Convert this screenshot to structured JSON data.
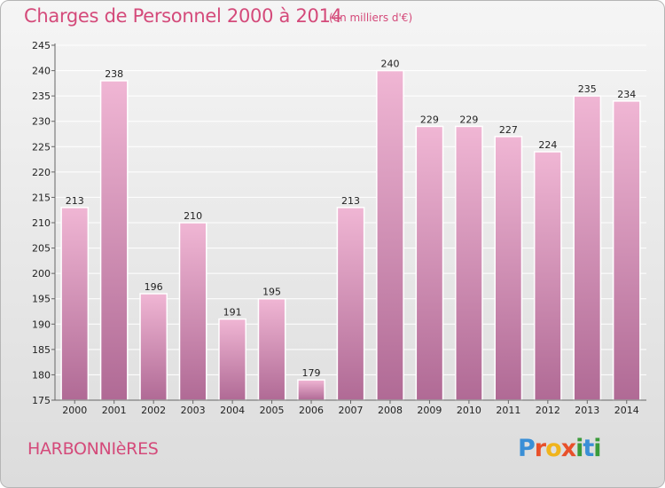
{
  "chart_title": "Charges de Personnel 2000 à 2014",
  "chart_subtitle": "(en milliers d'€)",
  "commune": "HARBONNIèRES",
  "brand": {
    "letters": [
      "P",
      "r",
      "o",
      "x",
      "i",
      "t",
      "i"
    ],
    "colors": [
      "#3a8fd6",
      "#e8502a",
      "#f0b41c",
      "#e8502a",
      "#3a9b3a",
      "#3a8fd6",
      "#3a9b3a"
    ]
  },
  "colors": {
    "accent": "#d44a7a",
    "bar_top": "#f0b6d4",
    "bar_bottom": "#b06a95"
  },
  "chart_data": {
    "type": "bar",
    "title": "Charges de Personnel 2000 à 2014",
    "subtitle": "(en milliers d'€)",
    "xlabel": "",
    "ylabel": "",
    "categories": [
      "2000",
      "2001",
      "2002",
      "2003",
      "2004",
      "2005",
      "2006",
      "2007",
      "2008",
      "2009",
      "2010",
      "2011",
      "2012",
      "2013",
      "2014"
    ],
    "values": [
      213,
      238,
      196,
      210,
      191,
      195,
      179,
      213,
      240,
      229,
      229,
      227,
      224,
      235,
      234
    ],
    "data_labels": [
      "213",
      "238",
      "196",
      "210",
      "191",
      "195",
      "179",
      "213",
      "240",
      "229",
      "229",
      "227",
      "224",
      "235",
      "234"
    ],
    "ylim": [
      175,
      245
    ],
    "yticks": [
      "175",
      "180",
      "185",
      "190",
      "195",
      "200",
      "205",
      "210",
      "215",
      "220",
      "225",
      "230",
      "235",
      "240",
      "245"
    ],
    "grid": true,
    "legend": "none"
  }
}
